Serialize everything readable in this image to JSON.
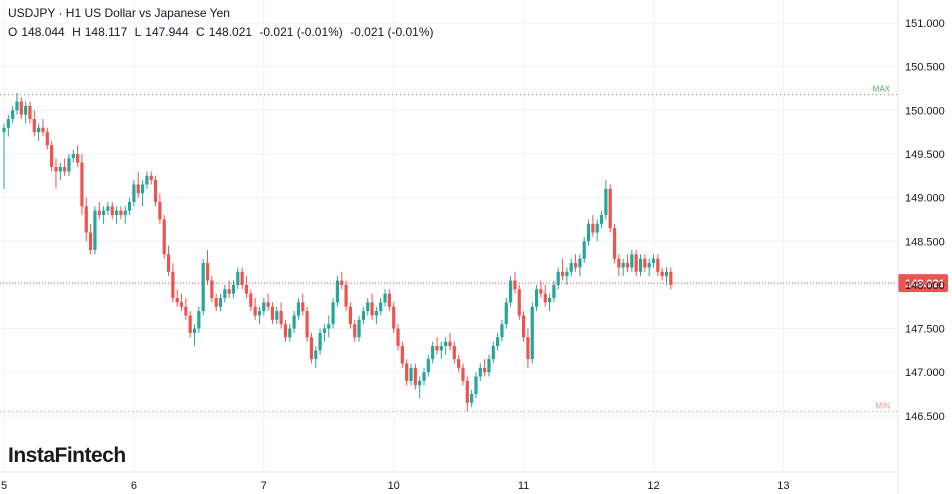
{
  "header": {
    "title": "USDJPY · H1 US Dollar vs Japanese Yen",
    "ohlc": {
      "o_label": "O",
      "o": "148.044",
      "h_label": "H",
      "h": "148.117",
      "l_label": "L",
      "l": "147.944",
      "c_label": "C",
      "c": "148.021",
      "change": "-0.021 (-0.01%)",
      "change2": "-0.021 (-0.01%)"
    }
  },
  "logo": "InstaFintech",
  "colors": {
    "up": "#26a69a",
    "down": "#ef5350",
    "grid": "#f0f3fa",
    "price_line": "#ef5350",
    "max_line": "#4caf50",
    "min_line": "#ef9a9a"
  },
  "chart_data": {
    "type": "candlestick",
    "symbol": "USDJPY",
    "timeframe": "H1",
    "ylim": [
      146.3,
      151.2
    ],
    "yticks": [
      "151.000",
      "150.500",
      "150.000",
      "149.500",
      "149.000",
      "148.500",
      "148.000",
      "147.500",
      "147.000",
      "146.500"
    ],
    "x_tick_labels": [
      "5",
      "6",
      "7",
      "10",
      "11",
      "12",
      "13"
    ],
    "x_tick_candle_index": [
      0,
      30,
      60,
      90,
      120,
      150,
      180
    ],
    "current_price": "148.021",
    "max_level": {
      "label": "MAX",
      "value": 150.18
    },
    "min_level": {
      "label": "MIN",
      "value": 146.55
    },
    "candles": [
      [
        149.75,
        149.85,
        149.1,
        149.8
      ],
      [
        149.8,
        149.95,
        149.7,
        149.9
      ],
      [
        149.9,
        150.05,
        149.85,
        150.0
      ],
      [
        150.0,
        150.2,
        149.95,
        150.1
      ],
      [
        150.1,
        150.15,
        149.9,
        149.95
      ],
      [
        149.95,
        150.1,
        149.85,
        150.05
      ],
      [
        150.05,
        150.1,
        149.85,
        149.9
      ],
      [
        149.9,
        150.0,
        149.7,
        149.75
      ],
      [
        149.75,
        149.85,
        149.65,
        149.8
      ],
      [
        149.8,
        149.9,
        149.7,
        149.75
      ],
      [
        149.75,
        149.8,
        149.55,
        149.6
      ],
      [
        149.6,
        149.65,
        149.3,
        149.35
      ],
      [
        149.35,
        149.45,
        149.1,
        149.3
      ],
      [
        149.3,
        149.4,
        149.2,
        149.35
      ],
      [
        149.35,
        149.45,
        149.25,
        149.3
      ],
      [
        149.3,
        149.5,
        149.25,
        149.45
      ],
      [
        149.45,
        149.55,
        149.4,
        149.5
      ],
      [
        149.5,
        149.6,
        149.35,
        149.4
      ],
      [
        149.4,
        149.5,
        148.8,
        148.9
      ],
      [
        148.9,
        149.0,
        148.5,
        148.6
      ],
      [
        148.6,
        148.7,
        148.35,
        148.4
      ],
      [
        148.4,
        148.9,
        148.35,
        148.85
      ],
      [
        148.85,
        148.95,
        148.75,
        148.8
      ],
      [
        148.8,
        148.9,
        148.7,
        148.85
      ],
      [
        148.85,
        148.95,
        148.8,
        148.9
      ],
      [
        148.9,
        148.95,
        148.75,
        148.8
      ],
      [
        148.8,
        148.9,
        148.7,
        148.85
      ],
      [
        148.85,
        148.9,
        148.75,
        148.8
      ],
      [
        148.8,
        148.9,
        148.7,
        148.85
      ],
      [
        148.85,
        149.0,
        148.8,
        148.95
      ],
      [
        148.95,
        149.2,
        148.9,
        149.15
      ],
      [
        149.15,
        149.3,
        149.0,
        149.05
      ],
      [
        149.05,
        149.2,
        148.9,
        149.15
      ],
      [
        149.15,
        149.3,
        149.1,
        149.25
      ],
      [
        149.25,
        149.3,
        149.15,
        149.2
      ],
      [
        149.2,
        149.25,
        148.9,
        148.95
      ],
      [
        148.95,
        149.05,
        148.7,
        148.75
      ],
      [
        148.75,
        148.8,
        148.3,
        148.35
      ],
      [
        148.35,
        148.45,
        148.1,
        148.15
      ],
      [
        148.15,
        148.25,
        147.8,
        147.85
      ],
      [
        147.85,
        147.95,
        147.75,
        147.8
      ],
      [
        147.8,
        147.9,
        147.7,
        147.75
      ],
      [
        147.75,
        147.85,
        147.6,
        147.65
      ],
      [
        147.65,
        147.7,
        147.4,
        147.45
      ],
      [
        147.45,
        147.55,
        147.3,
        147.5
      ],
      [
        147.5,
        147.75,
        147.45,
        147.7
      ],
      [
        147.7,
        148.3,
        147.65,
        148.25
      ],
      [
        148.25,
        148.4,
        148.0,
        148.05
      ],
      [
        148.05,
        148.1,
        147.8,
        147.85
      ],
      [
        147.85,
        147.9,
        147.7,
        147.75
      ],
      [
        147.75,
        147.9,
        147.7,
        147.85
      ],
      [
        147.85,
        148.0,
        147.8,
        147.95
      ],
      [
        147.95,
        148.05,
        147.85,
        147.9
      ],
      [
        147.9,
        148.05,
        147.85,
        148.0
      ],
      [
        148.0,
        148.2,
        147.95,
        148.15
      ],
      [
        148.15,
        148.2,
        147.95,
        148.0
      ],
      [
        148.0,
        148.1,
        147.85,
        147.9
      ],
      [
        147.9,
        147.95,
        147.7,
        147.75
      ],
      [
        147.75,
        147.85,
        147.6,
        147.65
      ],
      [
        147.65,
        147.75,
        147.55,
        147.7
      ],
      [
        147.7,
        147.85,
        147.65,
        147.8
      ],
      [
        147.8,
        147.9,
        147.7,
        147.75
      ],
      [
        147.75,
        147.8,
        147.55,
        147.6
      ],
      [
        147.6,
        147.75,
        147.55,
        147.7
      ],
      [
        147.7,
        147.8,
        147.5,
        147.55
      ],
      [
        147.55,
        147.6,
        147.35,
        147.4
      ],
      [
        147.4,
        147.55,
        147.35,
        147.5
      ],
      [
        147.5,
        147.7,
        147.45,
        147.65
      ],
      [
        147.65,
        147.85,
        147.6,
        147.8
      ],
      [
        147.8,
        147.9,
        147.65,
        147.7
      ],
      [
        147.7,
        147.75,
        147.35,
        147.4
      ],
      [
        147.4,
        147.45,
        147.1,
        147.15
      ],
      [
        147.15,
        147.3,
        147.05,
        147.25
      ],
      [
        147.25,
        147.5,
        147.2,
        147.45
      ],
      [
        147.45,
        147.55,
        147.35,
        147.5
      ],
      [
        147.5,
        147.65,
        147.4,
        147.55
      ],
      [
        147.55,
        147.85,
        147.5,
        147.8
      ],
      [
        147.8,
        148.1,
        147.75,
        148.05
      ],
      [
        148.05,
        148.15,
        147.95,
        148.0
      ],
      [
        148.0,
        148.05,
        147.7,
        147.75
      ],
      [
        147.75,
        147.8,
        147.5,
        147.55
      ],
      [
        147.55,
        147.6,
        147.35,
        147.4
      ],
      [
        147.4,
        147.65,
        147.35,
        147.6
      ],
      [
        147.6,
        147.75,
        147.55,
        147.7
      ],
      [
        147.7,
        147.85,
        147.65,
        147.8
      ],
      [
        147.8,
        147.9,
        147.6,
        147.65
      ],
      [
        147.65,
        147.75,
        147.55,
        147.7
      ],
      [
        147.7,
        147.85,
        147.65,
        147.8
      ],
      [
        147.8,
        147.95,
        147.75,
        147.9
      ],
      [
        147.9,
        147.95,
        147.7,
        147.75
      ],
      [
        147.75,
        147.8,
        147.45,
        147.5
      ],
      [
        147.5,
        147.55,
        147.25,
        147.3
      ],
      [
        147.3,
        147.35,
        147.05,
        147.1
      ],
      [
        147.1,
        147.15,
        146.85,
        146.9
      ],
      [
        146.9,
        147.1,
        146.85,
        147.05
      ],
      [
        147.05,
        147.1,
        146.8,
        146.85
      ],
      [
        146.85,
        146.95,
        146.7,
        146.9
      ],
      [
        146.9,
        147.05,
        146.85,
        147.0
      ],
      [
        147.0,
        147.2,
        146.95,
        147.15
      ],
      [
        147.15,
        147.35,
        147.1,
        147.3
      ],
      [
        147.3,
        147.4,
        147.2,
        147.25
      ],
      [
        147.25,
        147.35,
        147.15,
        147.3
      ],
      [
        147.3,
        147.4,
        147.2,
        147.35
      ],
      [
        147.35,
        147.45,
        147.25,
        147.3
      ],
      [
        147.3,
        147.35,
        147.1,
        147.15
      ],
      [
        147.15,
        147.2,
        147.0,
        147.05
      ],
      [
        147.05,
        147.1,
        146.85,
        146.9
      ],
      [
        146.9,
        146.95,
        146.55,
        146.65
      ],
      [
        146.65,
        146.8,
        146.6,
        146.75
      ],
      [
        146.75,
        147.0,
        146.7,
        146.95
      ],
      [
        146.95,
        147.1,
        146.9,
        147.05
      ],
      [
        147.05,
        147.15,
        146.95,
        147.0
      ],
      [
        147.0,
        147.2,
        146.95,
        147.15
      ],
      [
        147.15,
        147.35,
        147.1,
        147.3
      ],
      [
        147.3,
        147.45,
        147.25,
        147.4
      ],
      [
        147.4,
        147.6,
        147.35,
        147.55
      ],
      [
        147.55,
        147.85,
        147.5,
        147.8
      ],
      [
        147.8,
        148.1,
        147.75,
        148.05
      ],
      [
        148.05,
        148.15,
        147.9,
        147.95
      ],
      [
        147.95,
        148.0,
        147.6,
        147.65
      ],
      [
        147.65,
        147.7,
        147.35,
        147.4
      ],
      [
        147.4,
        147.5,
        147.05,
        147.15
      ],
      [
        147.15,
        147.8,
        147.1,
        147.75
      ],
      [
        147.75,
        148.0,
        147.7,
        147.95
      ],
      [
        147.95,
        148.05,
        147.85,
        147.9
      ],
      [
        147.9,
        148.0,
        147.75,
        147.8
      ],
      [
        147.8,
        147.9,
        147.7,
        147.85
      ],
      [
        147.85,
        148.05,
        147.8,
        148.0
      ],
      [
        148.0,
        148.2,
        147.95,
        148.15
      ],
      [
        148.15,
        148.3,
        148.05,
        148.1
      ],
      [
        148.1,
        148.2,
        148.0,
        148.15
      ],
      [
        148.15,
        148.3,
        148.1,
        148.25
      ],
      [
        148.25,
        148.35,
        148.15,
        148.2
      ],
      [
        148.2,
        148.35,
        148.1,
        148.3
      ],
      [
        148.3,
        148.55,
        148.25,
        148.5
      ],
      [
        148.5,
        148.75,
        148.45,
        148.7
      ],
      [
        148.7,
        148.8,
        148.55,
        148.6
      ],
      [
        148.6,
        148.75,
        148.5,
        148.7
      ],
      [
        148.7,
        148.85,
        148.65,
        148.8
      ],
      [
        148.8,
        149.2,
        148.75,
        149.1
      ],
      [
        149.1,
        149.15,
        148.6,
        148.65
      ],
      [
        148.65,
        148.7,
        148.25,
        148.3
      ],
      [
        148.3,
        148.35,
        148.1,
        148.2
      ],
      [
        148.2,
        148.3,
        148.1,
        148.25
      ],
      [
        148.25,
        148.35,
        148.15,
        148.2
      ],
      [
        148.2,
        148.4,
        148.15,
        148.35
      ],
      [
        148.35,
        148.4,
        148.1,
        148.15
      ],
      [
        148.15,
        148.35,
        148.1,
        148.3
      ],
      [
        148.3,
        148.35,
        148.15,
        148.2
      ],
      [
        148.2,
        148.3,
        148.1,
        148.25
      ],
      [
        148.25,
        148.35,
        148.2,
        148.3
      ],
      [
        148.3,
        148.35,
        148.1,
        148.15
      ],
      [
        148.15,
        148.2,
        148.05,
        148.1
      ],
      [
        148.1,
        148.2,
        148.0,
        148.15
      ],
      [
        148.15,
        148.2,
        147.95,
        148.0
      ]
    ]
  }
}
